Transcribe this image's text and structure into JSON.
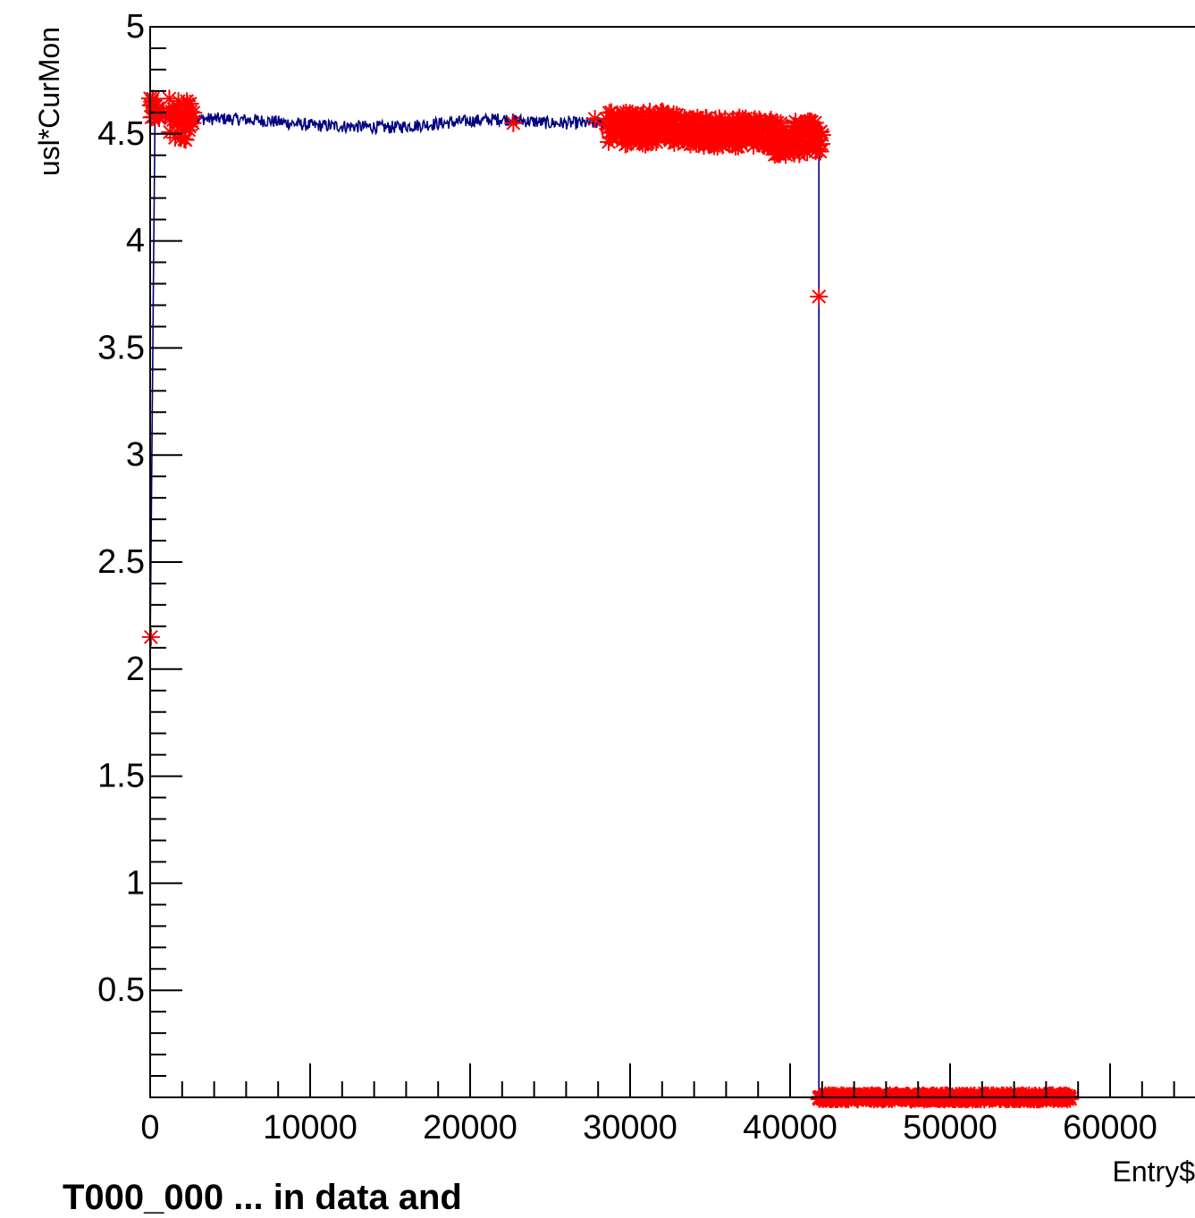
{
  "chart_data": {
    "type": "scatter",
    "title": "",
    "xlabel": "Entry$",
    "ylabel": "usl*CurMon",
    "xlim": [
      0,
      65000
    ],
    "ylim": [
      0,
      5
    ],
    "grid": false,
    "x_ticks": [
      "0",
      "10000",
      "20000",
      "30000",
      "40000",
      "50000",
      "60000"
    ],
    "y_ticks": [
      "0.5",
      "1",
      "1.5",
      "2",
      "2.5",
      "3",
      "3.5",
      "4",
      "4.5",
      "5"
    ],
    "colors": {
      "line": "#000080",
      "markers": "#ff0000"
    },
    "series": [
      {
        "style": "line",
        "x": [
          0,
          300,
          2500,
          5000,
          7500,
          10000,
          15000,
          20000,
          22000,
          25000,
          28000,
          30000,
          33000,
          36000,
          39000,
          41500,
          41800,
          41800,
          65000
        ],
        "y": [
          2.1,
          4.58,
          4.57,
          4.57,
          4.56,
          4.54,
          4.53,
          4.56,
          4.57,
          4.55,
          4.55,
          4.54,
          4.53,
          4.52,
          4.51,
          4.48,
          4.47,
          0.0,
          0.0
        ],
        "noise": 0.03
      },
      {
        "style": "markers",
        "marker": "star",
        "clusters": [
          {
            "x_range": [
              0,
              600
            ],
            "y": 4.62,
            "spread": 0.05
          },
          {
            "x_range": [
              1200,
              2700
            ],
            "y": 4.57,
            "spread": 0.1
          },
          {
            "x_range": [
              28500,
              33000
            ],
            "y": 4.53,
            "spread": 0.08
          },
          {
            "x_range": [
              33000,
              39000
            ],
            "y": 4.51,
            "spread": 0.07
          },
          {
            "x_range": [
              39000,
              42000
            ],
            "y": 4.48,
            "spread": 0.08
          },
          {
            "x_range": [
              41800,
              57500
            ],
            "y": 0.0,
            "spread": 0.01
          }
        ],
        "points": [
          {
            "x": 50,
            "y": 2.15
          },
          {
            "x": 22700,
            "y": 4.55
          },
          {
            "x": 27800,
            "y": 4.57
          },
          {
            "x": 35300,
            "y": 4.46
          },
          {
            "x": 41800,
            "y": 3.74
          }
        ]
      }
    ]
  },
  "page_title": "T000_000 — ... in data and..."
}
